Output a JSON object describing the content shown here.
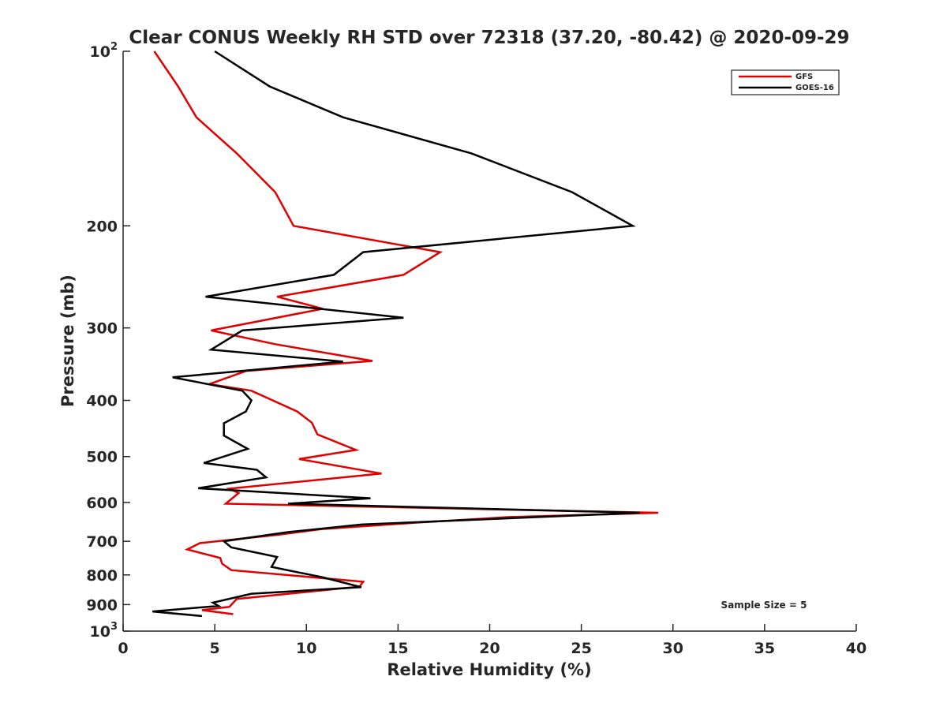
{
  "chart_data": {
    "type": "line",
    "title": "Clear CONUS Weekly RH STD over 72318 (37.20, -80.42) @ 2020-09-29",
    "xlabel": "Relative Humidity (%)",
    "ylabel": "Pressure (mb)",
    "xlim": [
      0,
      40
    ],
    "ylim": [
      100,
      1000
    ],
    "y_scale": "log",
    "y_reversed": true,
    "grid": false,
    "legend_position": "top-right",
    "x_ticks": [
      0,
      5,
      10,
      15,
      20,
      25,
      30,
      35,
      40
    ],
    "y_ticks": [
      {
        "value": 100,
        "base": "10",
        "exp": "2"
      },
      {
        "value": 200,
        "label": "200"
      },
      {
        "value": 300,
        "label": "300"
      },
      {
        "value": 400,
        "label": "400"
      },
      {
        "value": 500,
        "label": "500"
      },
      {
        "value": 600,
        "label": "600"
      },
      {
        "value": 700,
        "label": "700"
      },
      {
        "value": 800,
        "label": "800"
      },
      {
        "value": 900,
        "label": "900"
      },
      {
        "value": 1000,
        "base": "10",
        "exp": "3"
      }
    ],
    "annotation": "Sample Size = 5",
    "series": [
      {
        "name": "GFS",
        "color": "#e00000",
        "points": [
          [
            1.7,
            100
          ],
          [
            3.0,
            115
          ],
          [
            4.0,
            130
          ],
          [
            6.2,
            150
          ],
          [
            8.3,
            175
          ],
          [
            9.3,
            200
          ],
          [
            17.3,
            222
          ],
          [
            15.3,
            243
          ],
          [
            8.4,
            265
          ],
          [
            10.9,
            278
          ],
          [
            4.8,
            303
          ],
          [
            8.3,
            320
          ],
          [
            13.6,
            342
          ],
          [
            6.7,
            356
          ],
          [
            4.7,
            375
          ],
          [
            7.0,
            385
          ],
          [
            9.5,
            418
          ],
          [
            10.3,
            437
          ],
          [
            10.6,
            458
          ],
          [
            12.7,
            487
          ],
          [
            9.6,
            505
          ],
          [
            14.1,
            535
          ],
          [
            5.8,
            568
          ],
          [
            6.3,
            578
          ],
          [
            5.6,
            603
          ],
          [
            29.2,
            625
          ],
          [
            21.0,
            636
          ],
          [
            16.0,
            650
          ],
          [
            10.8,
            667
          ],
          [
            8.5,
            682
          ],
          [
            4.2,
            705
          ],
          [
            3.5,
            723
          ],
          [
            5.3,
            748
          ],
          [
            5.4,
            765
          ],
          [
            5.9,
            785
          ],
          [
            13.1,
            822
          ],
          [
            12.9,
            838
          ],
          [
            6.2,
            880
          ],
          [
            5.8,
            908
          ],
          [
            4.3,
            920
          ],
          [
            6.0,
            935
          ]
        ]
      },
      {
        "name": "GOES-16",
        "color": "#000000",
        "points": [
          [
            5.0,
            100
          ],
          [
            8.0,
            115
          ],
          [
            12.0,
            130
          ],
          [
            19.0,
            150
          ],
          [
            24.5,
            175
          ],
          [
            27.8,
            200
          ],
          [
            13.1,
            222
          ],
          [
            11.5,
            243
          ],
          [
            4.5,
            265
          ],
          [
            15.3,
            288
          ],
          [
            6.5,
            303
          ],
          [
            4.8,
            327
          ],
          [
            12.0,
            343
          ],
          [
            2.7,
            365
          ],
          [
            6.5,
            385
          ],
          [
            7.0,
            400
          ],
          [
            6.7,
            418
          ],
          [
            5.5,
            438
          ],
          [
            5.5,
            460
          ],
          [
            6.8,
            485
          ],
          [
            4.4,
            513
          ],
          [
            7.3,
            527
          ],
          [
            7.8,
            543
          ],
          [
            4.1,
            567
          ],
          [
            13.5,
            590
          ],
          [
            9.0,
            603
          ],
          [
            28.2,
            625
          ],
          [
            13.0,
            655
          ],
          [
            9.0,
            675
          ],
          [
            5.5,
            700
          ],
          [
            5.9,
            717
          ],
          [
            8.4,
            745
          ],
          [
            8.1,
            775
          ],
          [
            10.9,
            808
          ],
          [
            13.0,
            840
          ],
          [
            7.0,
            862
          ],
          [
            4.9,
            893
          ],
          [
            5.2,
            905
          ],
          [
            1.6,
            925
          ],
          [
            4.3,
            942
          ]
        ]
      }
    ]
  }
}
